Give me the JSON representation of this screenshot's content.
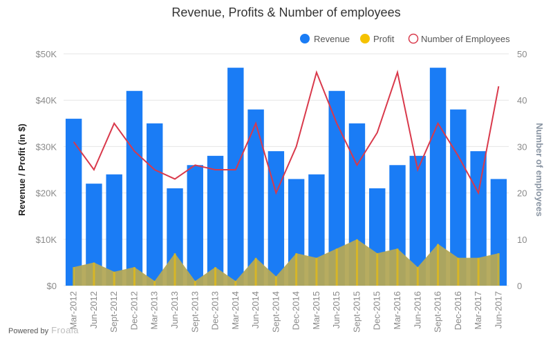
{
  "chart_data": {
    "type": "bar",
    "title": "Revenue, Profits & Number of employees",
    "categories": [
      "Mar-2012",
      "Jun-2012",
      "Sept-2012",
      "Dec-2012",
      "Mar-2013",
      "Jun-2013",
      "Sept-2013",
      "Dec-2013",
      "Mar-2014",
      "Jun-2014",
      "Sept-2014",
      "Dec-2014",
      "Mar-2015",
      "Jun-2015",
      "Sept-2015",
      "Dec-2015",
      "Mar-2016",
      "Jun-2016",
      "Sept-2016",
      "Dec-2016",
      "Mar-2017",
      "Jun-2017"
    ],
    "series": [
      {
        "name": "Revenue",
        "type": "bar",
        "axis": "left",
        "color": "#1a7cf5",
        "values": [
          36000,
          22000,
          24000,
          42000,
          35000,
          21000,
          26000,
          28000,
          47000,
          38000,
          29000,
          23000,
          24000,
          42000,
          35000,
          21000,
          26000,
          28000,
          47000,
          38000,
          29000,
          23000
        ]
      },
      {
        "name": "Profit",
        "type": "area",
        "axis": "left",
        "color": "#f5c200",
        "fill_color": "#b3a857",
        "values": [
          4000,
          5000,
          3000,
          4000,
          1000,
          7000,
          1000,
          4000,
          1000,
          6000,
          2000,
          7000,
          6000,
          8000,
          10000,
          7000,
          8000,
          4000,
          9000,
          6000,
          6000,
          7000
        ]
      },
      {
        "name": "Number of Employees",
        "type": "line",
        "axis": "right",
        "color": "#d9394b",
        "values": [
          31,
          25,
          35,
          29,
          25,
          23,
          26,
          25,
          25,
          35,
          20,
          30,
          46,
          35,
          26,
          33,
          46,
          25,
          35,
          28,
          20,
          43
        ]
      }
    ],
    "y_left": {
      "label": "Revenue / Profit (in $)",
      "min": 0,
      "max": 50000,
      "ticks": [
        0,
        10000,
        20000,
        30000,
        40000,
        50000
      ],
      "tick_labels": [
        "$0",
        "$10K",
        "$20K",
        "$30K",
        "$40K",
        "$50K"
      ],
      "color": "#222222"
    },
    "y_right": {
      "label": "Number of employees",
      "min": 0,
      "max": 50,
      "ticks": [
        0,
        10,
        20,
        30,
        40,
        50
      ],
      "tick_labels": [
        "0",
        "10",
        "20",
        "30",
        "40",
        "50"
      ],
      "color": "#8a95a3"
    },
    "grid": true,
    "legend_position": "top-right"
  },
  "footer": {
    "powered_by": "Powered by",
    "brand": "Froala"
  }
}
